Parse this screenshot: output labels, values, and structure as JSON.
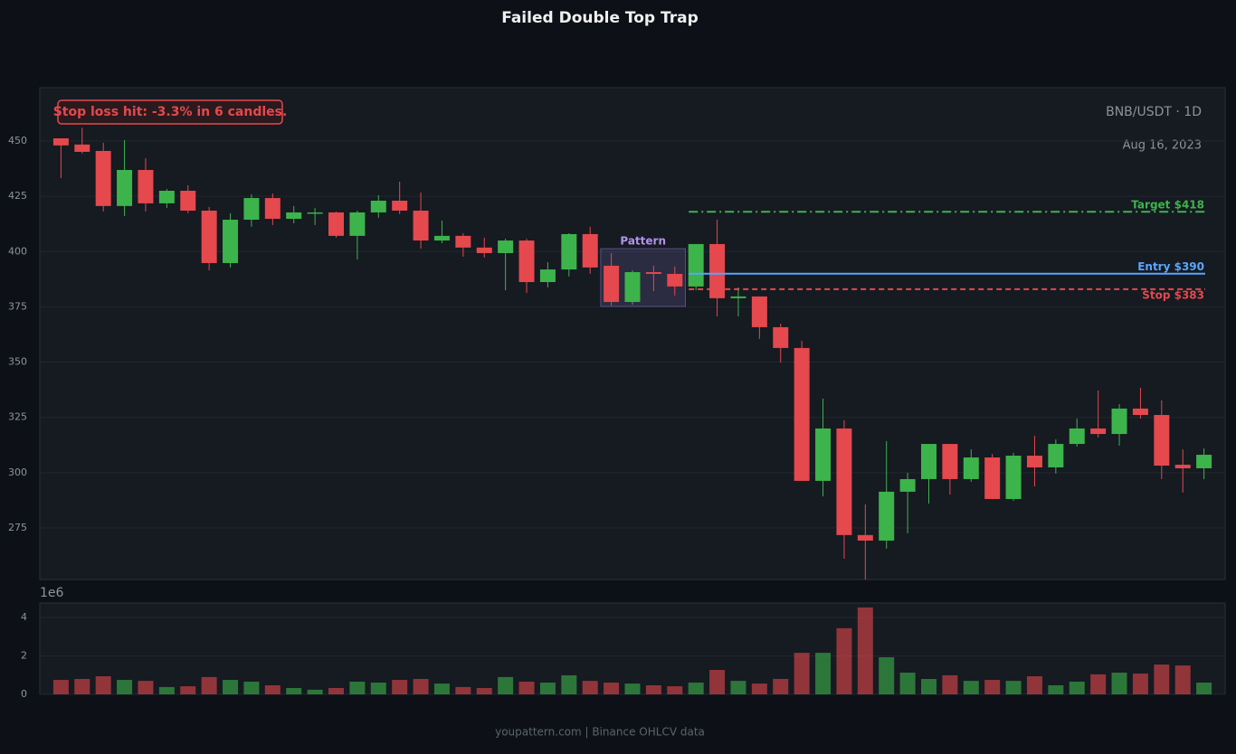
{
  "chart_data": {
    "type": "candlestick",
    "title": "Failed Double Top Trap",
    "annotation": "Stop loss hit: -3.3% in 6 candles.",
    "symbol": "BNB/USDT · 1D",
    "date": "Aug 16, 2023",
    "footer": "youpattern.com | Binance OHLCV data",
    "up_color": "#3cb44b",
    "down_color": "#e5484d",
    "ylim": [
      251.7,
      474.1
    ],
    "yticks": [
      275,
      300,
      325,
      350,
      375,
      400,
      425,
      450
    ],
    "grid": true,
    "open": [
      451.2,
      448.4,
      445.5,
      420.6,
      436.9,
      421.8,
      427.5,
      418.5,
      394.8,
      414.4,
      424.2,
      414.8,
      417.3,
      417.7,
      407.1,
      417.7,
      423,
      418.5,
      405,
      407.1,
      401.8,
      399.3,
      405,
      386.2,
      391.9,
      407.9,
      393.6,
      377.2,
      390.7,
      389.9,
      384.2,
      403.4,
      378.9,
      379.7,
      365.8,
      356.4,
      296.3,
      320,
      271.8,
      269.3,
      291.4,
      297.1,
      313,
      297.1,
      306.9,
      288.1,
      307.7,
      302.4,
      313,
      320,
      317.5,
      329,
      326.1,
      303.6,
      302
    ],
    "high": [
      451.2,
      456,
      449.2,
      450.4,
      442.2,
      428.3,
      430,
      420.2,
      417.3,
      425.9,
      426.3,
      420.6,
      419.7,
      418.1,
      418.5,
      425.5,
      431.6,
      426.7,
      414,
      408.3,
      406.3,
      405.8,
      405.8,
      395.2,
      408.3,
      411.2,
      399.3,
      391.5,
      393.6,
      393.2,
      403.4,
      414.4,
      383.8,
      379.7,
      367.4,
      359.7,
      333.5,
      323.7,
      285.7,
      314.3,
      300,
      313,
      313,
      310.6,
      308.5,
      309,
      316.7,
      315.1,
      324.5,
      337.2,
      331,
      338.4,
      332.7,
      310.6,
      311
    ],
    "low": [
      433.2,
      444.3,
      418.1,
      416.1,
      418.1,
      419.7,
      417.3,
      391.5,
      392.8,
      411.2,
      412,
      412.8,
      412,
      406.3,
      396.4,
      415.3,
      416.9,
      401.3,
      403.8,
      397.7,
      397.3,
      382.5,
      381.3,
      383.8,
      388.7,
      389.9,
      375.6,
      376,
      382.1,
      380.1,
      382.5,
      370.7,
      370.7,
      360.5,
      349.8,
      296.3,
      289.3,
      261.1,
      251.7,
      265.6,
      272.6,
      286,
      290.1,
      295.9,
      288.1,
      287.3,
      293.8,
      299.6,
      311.8,
      315.9,
      312.2,
      324.5,
      297.1,
      291,
      297.1
    ],
    "close": [
      448,
      445.1,
      420.6,
      436.9,
      421.8,
      427.5,
      418.5,
      394.8,
      414.4,
      424.2,
      414.8,
      417.7,
      417.7,
      407.1,
      417.7,
      423,
      418.5,
      405,
      407.1,
      401.8,
      399.3,
      405,
      386.2,
      391.9,
      407.9,
      392.8,
      377.2,
      390.7,
      389.9,
      384.2,
      403.4,
      378.9,
      379.7,
      365.8,
      356.4,
      296.3,
      320,
      271.8,
      269.3,
      291.4,
      297.1,
      313,
      297.1,
      306.9,
      288.1,
      307.7,
      302.4,
      313,
      320,
      317.5,
      329,
      326.1,
      303.2,
      302,
      308.1
    ],
    "volume": [
      0.75,
      0.8,
      0.94,
      0.75,
      0.7,
      0.38,
      0.42,
      0.9,
      0.75,
      0.66,
      0.47,
      0.33,
      0.24,
      0.33,
      0.66,
      0.61,
      0.75,
      0.8,
      0.56,
      0.38,
      0.33,
      0.9,
      0.66,
      0.61,
      0.99,
      0.7,
      0.61,
      0.56,
      0.47,
      0.42,
      0.61,
      1.27,
      0.7,
      0.56,
      0.8,
      2.16,
      2.16,
      3.44,
      4.52,
      1.93,
      1.13,
      0.8,
      0.99,
      0.7,
      0.75,
      0.7,
      0.94,
      0.47,
      0.66,
      1.04,
      1.13,
      1.08,
      1.55,
      1.5,
      0.61
    ],
    "volume_scale": "1e6",
    "volume_ylim": [
      0,
      4.75
    ],
    "volume_yticks": [
      0,
      2,
      4
    ],
    "levels": [
      {
        "label": "Target $418",
        "value": 418,
        "color": "#3cb44b",
        "dash": "10 4 2 4"
      },
      {
        "label": "Entry $390",
        "value": 390,
        "color": "#58a6ff",
        "dash": ""
      },
      {
        "label": "Stop $383",
        "value": 383,
        "color": "#e5484d",
        "dash": "6 4"
      }
    ],
    "levels_start": 30,
    "pattern": {
      "label": "Pattern",
      "start": 26,
      "end": 29,
      "low": 375.2,
      "high": 401.3
    }
  }
}
